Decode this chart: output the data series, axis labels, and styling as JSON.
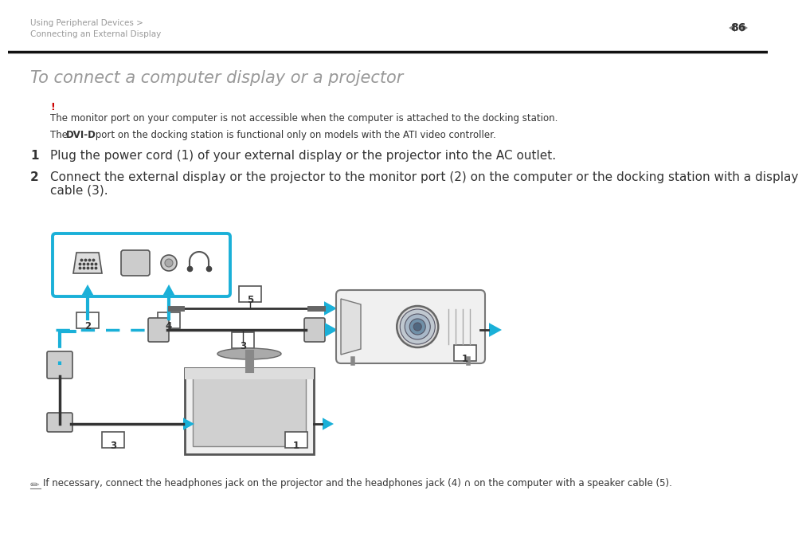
{
  "bg_color": "#ffffff",
  "header_line1": "Using Peripheral Devices >",
  "header_line2": "Connecting an External Display",
  "page_num": "86",
  "header_color": "#999999",
  "separator_color": "#111111",
  "title": "To connect a computer display or a projector",
  "title_color": "#999999",
  "warning_mark": "!",
  "warning_color": "#cc0000",
  "warning_text": "The monitor port on your computer is not accessible when the computer is attached to the docking station.",
  "dvi_note_pre": "The ",
  "dvi_note_bold": "DVI-D",
  "dvi_note_post": " port on the docking station is functional only on models with the ATI video controller.",
  "step1": "Plug the power cord (1) of your external display or the projector into the AC outlet.",
  "step2a": "Connect the external display or the projector to the monitor port (2) on the computer or the docking station with a display",
  "step2b": "cable (3).",
  "bottom_note": "If necessary, connect the headphones jack on the projector and the headphones jack (4) ∩ on the computer with a speaker cable (5).",
  "text_color": "#333333",
  "cyan": "#1ab0d8",
  "gray_icon": "#666666",
  "light_gray": "#cccccc",
  "mid_gray": "#888888"
}
